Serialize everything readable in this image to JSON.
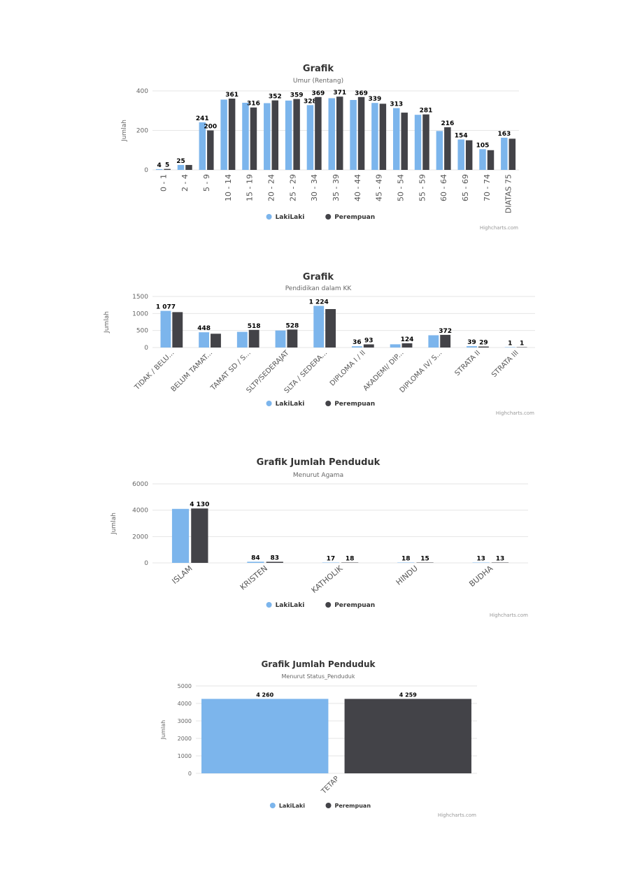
{
  "colors": {
    "laki": "#7cb5ec",
    "perempuan": "#434348",
    "grid": "#e6e6e6"
  },
  "chart_data": [
    {
      "type": "bar",
      "title": "Grafik",
      "subtitle": "Umur (Rentang)",
      "ylabel": "Jumlah",
      "ylim": [
        0,
        400
      ],
      "yticks": [
        0,
        200,
        400
      ],
      "categories": [
        "0 - 1",
        "2 - 4",
        "5 - 9",
        "10 - 14",
        "15 - 19",
        "20 - 24",
        "25 - 29",
        "30 - 34",
        "35 - 39",
        "40 - 44",
        "45 - 49",
        "50 - 54",
        "55 - 59",
        "60 - 64",
        "65 - 69",
        "70 - 74",
        "DIATAS 75"
      ],
      "series": [
        {
          "name": "LakiLaki",
          "values": [
            4,
            25,
            241,
            356,
            340,
            338,
            351,
            328,
            363,
            354,
            339,
            313,
            279,
            197,
            154,
            105,
            163
          ],
          "labels": [
            "4",
            "25",
            "241",
            "",
            "",
            "",
            "",
            "328",
            "",
            "",
            "339",
            "313",
            "",
            "",
            "154",
            "105",
            "163"
          ]
        },
        {
          "name": "Perempuan",
          "values": [
            5,
            25,
            200,
            361,
            316,
            352,
            359,
            369,
            371,
            369,
            335,
            290,
            281,
            216,
            150,
            100,
            158
          ],
          "labels": [
            "5",
            "",
            "200",
            "361",
            "316",
            "352",
            "359",
            "369",
            "371",
            "369",
            "",
            "",
            "281",
            "216",
            "",
            "",
            ""
          ]
        }
      ],
      "credit": "Highcharts.com"
    },
    {
      "type": "bar",
      "title": "Grafik",
      "subtitle": "Pendidikan dalam KK",
      "ylabel": "Jumlah",
      "ylim": [
        0,
        1500
      ],
      "yticks": [
        0,
        500,
        1000,
        1500
      ],
      "categories": [
        "TIDAK / BELU...",
        "BELUM TAMAT...",
        "TAMAT SD / S...",
        "SLTP/SEDERAJAT",
        "SLTA / SEDERA...",
        "DIPLOMA I / II",
        "AKADEMI/ DIP...",
        "DIPLOMA IV/ S...",
        "STRATA II",
        "STRATA III"
      ],
      "series": [
        {
          "name": "LakiLaki",
          "values": [
            1077,
            448,
            460,
            500,
            1224,
            36,
            95,
            360,
            39,
            1
          ],
          "labels": [
            "1 077",
            "448",
            "",
            "",
            "1 224",
            "36",
            "",
            "",
            "39",
            "1"
          ]
        },
        {
          "name": "Perempuan",
          "values": [
            1040,
            405,
            518,
            528,
            1130,
            93,
            124,
            372,
            29,
            1
          ],
          "labels": [
            "",
            "",
            "518",
            "528",
            "",
            "93",
            "124",
            "372",
            "29",
            "1"
          ]
        }
      ],
      "credit": "Highcharts.com"
    },
    {
      "type": "bar",
      "title": "Grafik Jumlah Penduduk",
      "subtitle": "Menurut Agama",
      "ylabel": "Jumlah",
      "ylim": [
        0,
        6000
      ],
      "yticks": [
        0,
        2000,
        4000,
        6000
      ],
      "categories": [
        "ISLAM",
        "KRISTEN",
        "KATHOLIK",
        "HINDU",
        "BUDHA"
      ],
      "series": [
        {
          "name": "LakiLaki",
          "values": [
            4100,
            84,
            17,
            18,
            13
          ],
          "labels": [
            "",
            "84",
            "17",
            "18",
            "13"
          ]
        },
        {
          "name": "Perempuan",
          "values": [
            4130,
            83,
            18,
            15,
            13
          ],
          "labels": [
            "4 130",
            "83",
            "18",
            "15",
            "13"
          ]
        }
      ],
      "credit": "Highcharts.com"
    },
    {
      "type": "bar",
      "title": "Grafik Jumlah Penduduk",
      "subtitle": "Menurut Status_Penduduk",
      "ylabel": "Jumlah",
      "ylim": [
        0,
        5000
      ],
      "yticks": [
        0,
        1000,
        2000,
        3000,
        4000,
        5000
      ],
      "categories": [
        "TETAP"
      ],
      "series": [
        {
          "name": "LakiLaki",
          "values": [
            4260
          ],
          "labels": [
            "4 260"
          ]
        },
        {
          "name": "Perempuan",
          "values": [
            4259
          ],
          "labels": [
            "4 259"
          ]
        }
      ],
      "credit": "Highcharts.com"
    }
  ]
}
